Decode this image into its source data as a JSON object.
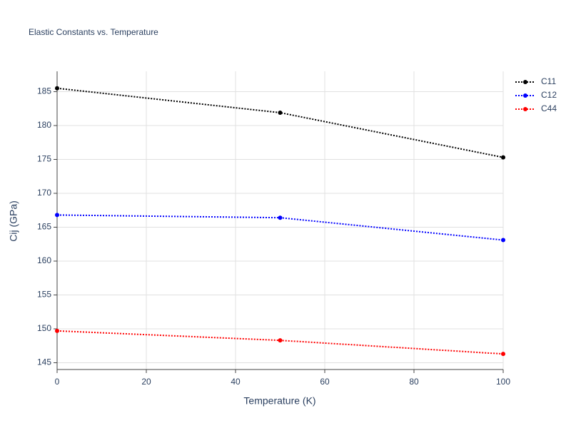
{
  "chart_data": {
    "type": "line",
    "title": "Elastic Constants vs. Temperature",
    "x_label": "Temperature (K)",
    "y_label": "Cij (GPa)",
    "x": [
      0,
      50,
      100
    ],
    "series": [
      {
        "name": "C11",
        "color": "#000000",
        "values": [
          185.5,
          181.9,
          175.3
        ]
      },
      {
        "name": "C12",
        "color": "#0000ff",
        "values": [
          166.8,
          166.4,
          163.1
        ]
      },
      {
        "name": "C44",
        "color": "#ff0000",
        "values": [
          149.7,
          148.3,
          146.3
        ]
      }
    ],
    "xlim": [
      0,
      100
    ],
    "xticks": [
      0,
      20,
      40,
      60,
      80,
      100
    ],
    "ylim": [
      144,
      188
    ],
    "yticks": [
      145,
      150,
      155,
      160,
      165,
      170,
      175,
      180,
      185
    ],
    "grid": true,
    "legend": "top-right"
  }
}
